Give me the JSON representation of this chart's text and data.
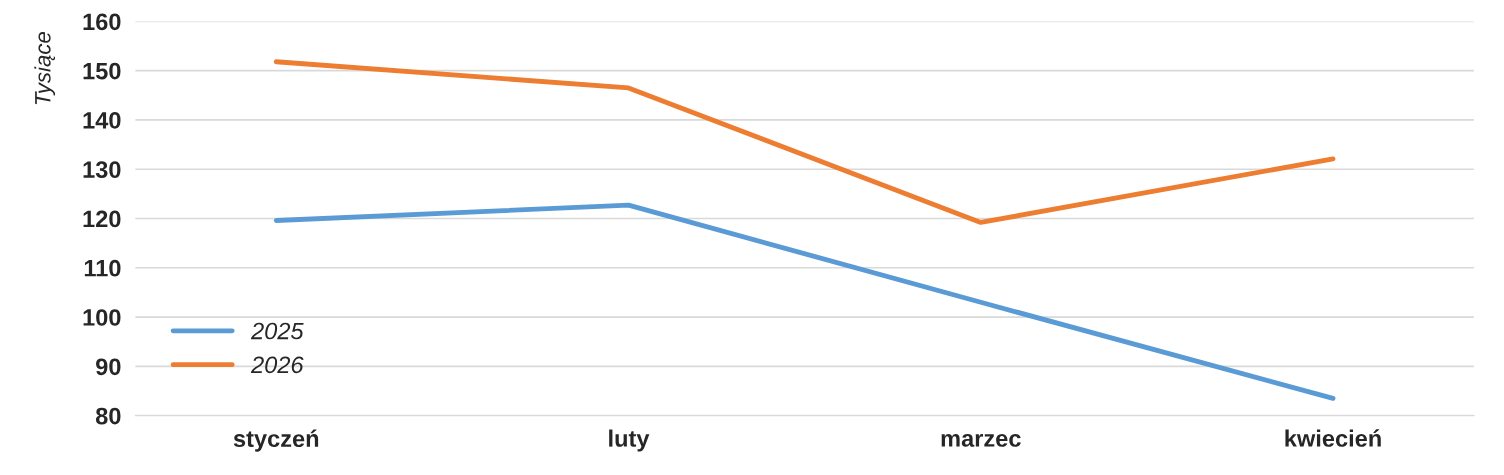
{
  "chart_data": {
    "type": "line",
    "ylabel": "Tysiące",
    "categories": [
      "styczeń",
      "luty",
      "marzec",
      "kwiecień"
    ],
    "series": [
      {
        "name": "2025",
        "color": "#5b9bd5",
        "values": [
          119.6,
          122.7,
          103,
          83.5
        ]
      },
      {
        "name": "2026",
        "color": "#ed7d31",
        "values": [
          151.8,
          146.5,
          119.2,
          132.1
        ]
      }
    ],
    "ylim": [
      80,
      160
    ],
    "yticks": [
      80,
      90,
      100,
      110,
      120,
      130,
      140,
      150,
      160
    ],
    "grid": "y",
    "legend": "bottom left",
    "marker": "none",
    "line_style": "solid"
  }
}
